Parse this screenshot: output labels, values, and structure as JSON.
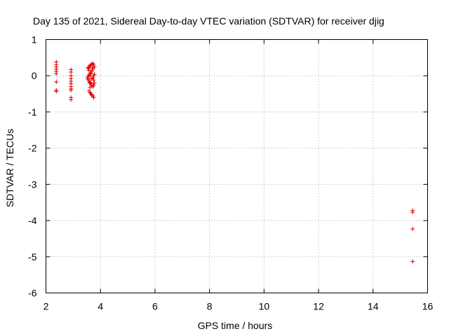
{
  "chart_data": {
    "type": "scatter",
    "title": "Day 135 of 2021, Sidereal Day-to-day VTEC variation (SDTVAR) for receiver djig",
    "xlabel": "GPS time / hours",
    "ylabel": "SDTVAR / TECUs",
    "xlim": [
      2,
      16
    ],
    "ylim": [
      -6,
      1
    ],
    "xticks": [
      "2",
      "4",
      "6",
      "8",
      "10",
      "12",
      "14",
      "16"
    ],
    "yticks": [
      "1",
      "0",
      "-1",
      "-2",
      "-3",
      "-4",
      "-5",
      "-6"
    ],
    "grid": true,
    "marker": "plus",
    "color": "#e00000",
    "points": [
      [
        2.38,
        0.38
      ],
      [
        2.38,
        0.3
      ],
      [
        2.38,
        0.24
      ],
      [
        2.38,
        0.18
      ],
      [
        2.38,
        0.12
      ],
      [
        2.38,
        0.06
      ],
      [
        2.38,
        -0.17
      ],
      [
        2.38,
        -0.4
      ],
      [
        2.38,
        -0.43
      ],
      [
        2.92,
        0.17
      ],
      [
        2.92,
        0.1
      ],
      [
        2.92,
        0.0
      ],
      [
        2.92,
        -0.08
      ],
      [
        2.92,
        -0.15
      ],
      [
        2.92,
        -0.22
      ],
      [
        2.92,
        -0.3
      ],
      [
        2.92,
        -0.36
      ],
      [
        2.92,
        -0.4
      ],
      [
        2.92,
        -0.6
      ],
      [
        2.92,
        -0.66
      ],
      [
        3.55,
        0.22
      ],
      [
        3.58,
        0.25
      ],
      [
        3.62,
        0.28
      ],
      [
        3.65,
        0.3
      ],
      [
        3.68,
        0.32
      ],
      [
        3.72,
        0.34
      ],
      [
        3.75,
        0.3
      ],
      [
        3.78,
        0.24
      ],
      [
        3.72,
        0.18
      ],
      [
        3.68,
        0.12
      ],
      [
        3.65,
        0.08
      ],
      [
        3.62,
        0.05
      ],
      [
        3.58,
        0.02
      ],
      [
        3.55,
        -0.02
      ],
      [
        3.52,
        -0.06
      ],
      [
        3.55,
        -0.1
      ],
      [
        3.58,
        -0.14
      ],
      [
        3.62,
        -0.18
      ],
      [
        3.65,
        -0.22
      ],
      [
        3.68,
        -0.26
      ],
      [
        3.72,
        -0.3
      ],
      [
        3.75,
        -0.26
      ],
      [
        3.78,
        -0.2
      ],
      [
        3.75,
        -0.12
      ],
      [
        3.72,
        -0.06
      ],
      [
        3.75,
        0.0
      ],
      [
        3.78,
        0.04
      ],
      [
        3.62,
        -0.32
      ],
      [
        3.58,
        -0.42
      ],
      [
        3.62,
        -0.47
      ],
      [
        3.65,
        -0.5
      ],
      [
        3.68,
        -0.53
      ],
      [
        3.72,
        -0.56
      ],
      [
        3.75,
        -0.6
      ],
      [
        3.58,
        0.15
      ],
      [
        3.55,
        0.2
      ],
      [
        3.68,
        -0.08
      ],
      [
        3.62,
        0.0
      ],
      [
        3.6,
        -0.2
      ],
      [
        3.7,
        0.22
      ],
      [
        15.45,
        -3.72
      ],
      [
        15.45,
        -3.77
      ],
      [
        15.45,
        -4.23
      ],
      [
        15.45,
        -5.13
      ]
    ]
  }
}
